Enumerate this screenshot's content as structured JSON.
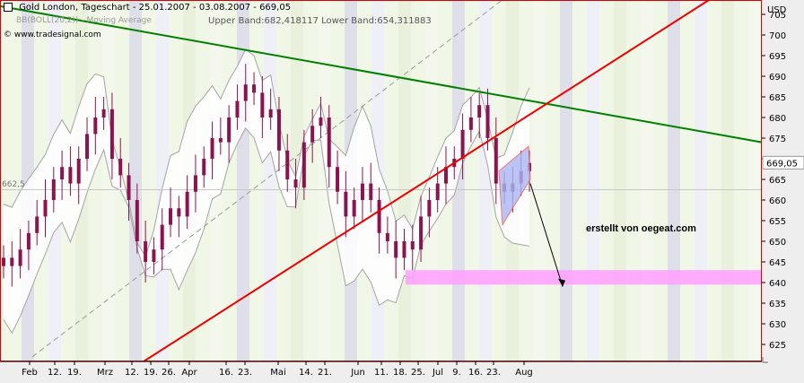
{
  "header": {
    "title": "Gold London, Tageschart - 25.01.2007 - 03.08.2007 - 669,05",
    "source": "www.tradesignal.com",
    "indicator_line": "BB(BOLL(20,2)) - Moving Average",
    "bands": "Upper Band:682,418117 Lower Band:654,311883",
    "price_left_label": "662,5"
  },
  "annotation": {
    "text": "erstellt von oegeat.com"
  },
  "colors": {
    "accent_red": "#ee0000",
    "trend_green": "#008000",
    "candle": "#8b1450",
    "band": "#a3a3a3",
    "support_zone": "#ff9fff",
    "channel": "#aab7f5"
  },
  "chart_data": {
    "type": "candlestick",
    "title": "Gold London, Tageschart - 25.01.2007 - 03.08.2007 - 669,05",
    "ylabel": "USD",
    "ylim": [
      620,
      710
    ],
    "y_ticks": [
      625,
      630,
      635,
      640,
      645,
      650,
      655,
      660,
      665,
      670,
      675,
      680,
      685,
      690,
      695,
      700,
      705
    ],
    "x_tick_labels": [
      "Feb",
      "12.",
      "19.",
      "Mrz",
      "12.",
      "19.",
      "26.",
      "Apr",
      "16.",
      "23.",
      "Mai",
      "14.",
      "21.",
      "Jun",
      "11.",
      "18.",
      "25.",
      "Jul",
      "9.",
      "16.",
      "23.",
      "Aug"
    ],
    "last_price": "669,05",
    "upper_band_last": 682.418117,
    "lower_band_last": 654.311883,
    "support_zone": [
      639.5,
      643
    ],
    "close_path": [
      646,
      644,
      648,
      652,
      656,
      660,
      665,
      668,
      664,
      670,
      676,
      680,
      682,
      670,
      666,
      660,
      650,
      645,
      648,
      654,
      658,
      656,
      662,
      666,
      670,
      675,
      674,
      680,
      684,
      688,
      686,
      680,
      682,
      672,
      665,
      663,
      674,
      678,
      680,
      668,
      662,
      656,
      660,
      664,
      660,
      652,
      650,
      646,
      650,
      648,
      656,
      660,
      664,
      668,
      670,
      677,
      680,
      683,
      675,
      664,
      662,
      664,
      667,
      669
    ]
  }
}
